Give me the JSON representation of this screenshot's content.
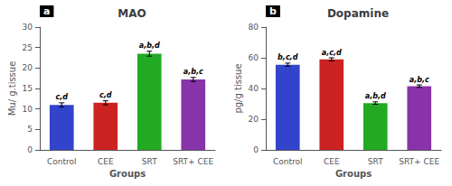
{
  "chart_data": [
    {
      "type": "bar",
      "title": "MAO",
      "panel_label": "a",
      "xlabel": "Groups",
      "ylabel": "Mu/ g.tissue",
      "categories": [
        "Control",
        "CEE",
        "SRT",
        "SRT+ CEE"
      ],
      "values": [
        11.0,
        11.5,
        23.5,
        17.2
      ],
      "errors": [
        0.5,
        0.5,
        0.6,
        0.5
      ],
      "colors": [
        "#3344cc",
        "#cc2222",
        "#22aa22",
        "#8833aa"
      ],
      "annotations": [
        "c,d",
        "c,d",
        "a,b,d",
        "a,b,c"
      ],
      "ylim": [
        0,
        30
      ],
      "yticks": [
        0,
        5,
        10,
        15,
        20,
        25,
        30
      ],
      "grid": false
    },
    {
      "type": "bar",
      "title": "Dopamine",
      "panel_label": "b",
      "xlabel": "Groups",
      "ylabel": "pg/g tissue",
      "categories": [
        "Control",
        "CEE",
        "SRT",
        "SRT+ CEE"
      ],
      "values": [
        55.5,
        59.0,
        30.5,
        41.5
      ],
      "errors": [
        1.0,
        1.0,
        0.8,
        0.8
      ],
      "colors": [
        "#3344cc",
        "#cc2222",
        "#22aa22",
        "#8833aa"
      ],
      "annotations": [
        "b,c,d",
        "a,c,d",
        "a,b,d",
        "a,b,c"
      ],
      "ylim": [
        0,
        80
      ],
      "yticks": [
        0,
        20,
        40,
        60,
        80
      ],
      "grid": false
    }
  ]
}
